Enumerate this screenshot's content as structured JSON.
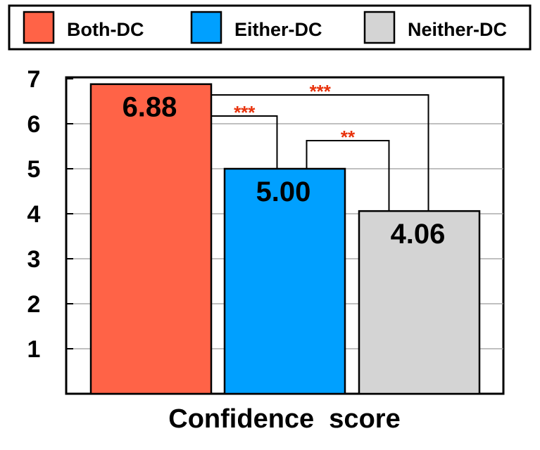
{
  "chart_data": {
    "type": "bar",
    "categories": [
      "Both-DC",
      "Either-DC",
      "Neither-DC"
    ],
    "values": [
      6.88,
      5.0,
      4.06
    ],
    "value_labels": [
      "6.88",
      "5.00",
      "4.06"
    ],
    "colors": [
      "#ff6347",
      "#00a0ff",
      "#d4d4d4"
    ],
    "xlabel": "Confidence  score",
    "ylabel": "",
    "ylim": [
      0,
      7
    ],
    "yticks": [
      "1",
      "2",
      "3",
      "4",
      "5",
      "6",
      "7"
    ],
    "grid": true,
    "legend": {
      "placement": "top",
      "entries": [
        "Both-DC",
        "Either-DC",
        "Neither-DC"
      ]
    },
    "significance": [
      {
        "from": "Both-DC",
        "to": "Neither-DC",
        "label": "***"
      },
      {
        "from": "Both-DC",
        "to": "Either-DC",
        "label": "***"
      },
      {
        "from": "Either-DC",
        "to": "Neither-DC",
        "label": "**"
      }
    ]
  }
}
